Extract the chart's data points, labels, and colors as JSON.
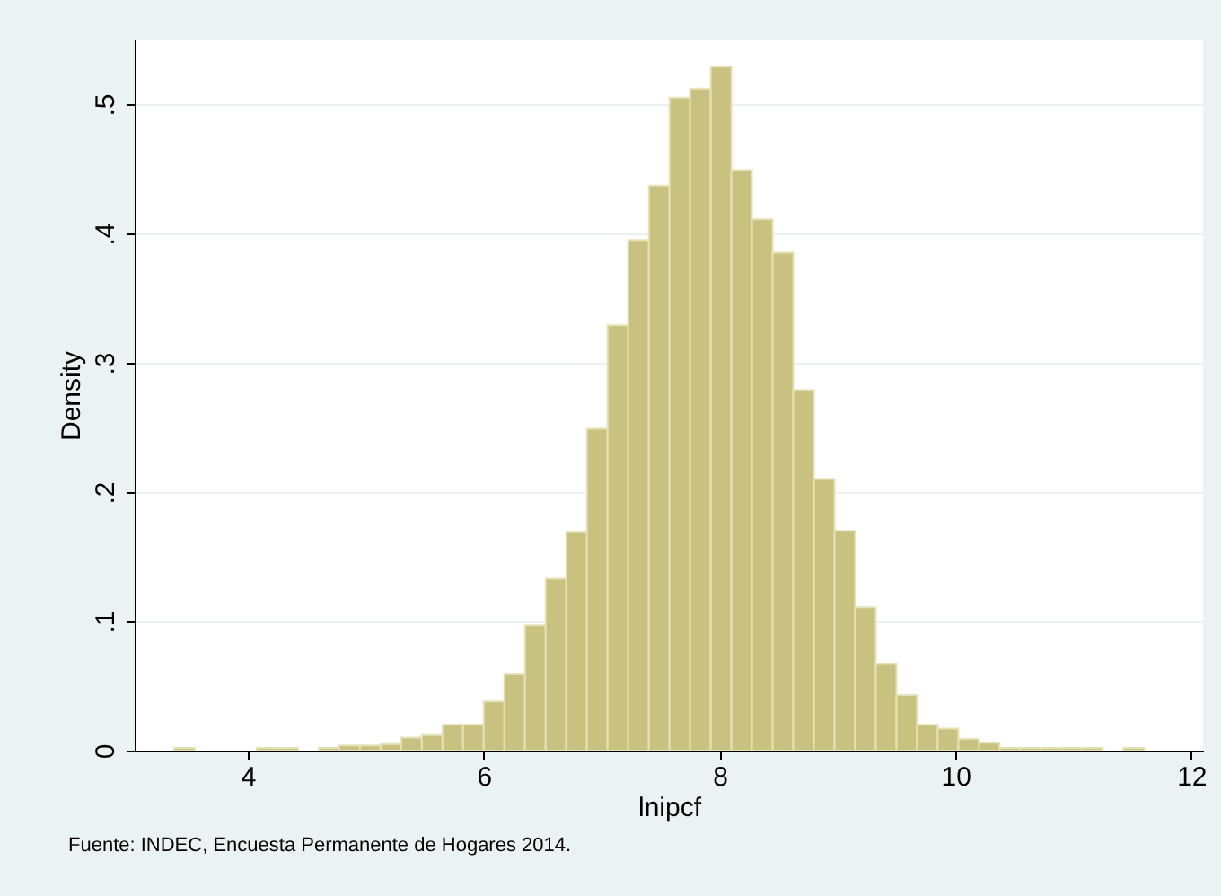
{
  "chart_data": {
    "type": "histogram",
    "xlabel": "lnipcf",
    "ylabel": "Density",
    "annotations": [
      "Fuente: INDEC, Encuesta Permanente de Hogares 2014."
    ],
    "bins": [
      3.375,
      3.55,
      3.725,
      3.9,
      4.075,
      4.25,
      4.425,
      4.6,
      4.775,
      4.95,
      5.125,
      5.3,
      5.475,
      5.65,
      5.825,
      6,
      6.175,
      6.35,
      6.525,
      6.7,
      6.875,
      7.05,
      7.225,
      7.4,
      7.575,
      7.75,
      7.925,
      8.1,
      8.275,
      8.45,
      8.625,
      8.8,
      8.975,
      9.15,
      9.325,
      9.5,
      9.675,
      9.85,
      10.025,
      10.2,
      10.375,
      10.55,
      10.725,
      10.9,
      11.075,
      11.25,
      11.425,
      11.6
    ],
    "values": [
      0.002,
      0,
      0,
      0,
      0.002,
      0.002,
      0,
      0.002,
      0.004,
      0.004,
      0.005,
      0.01,
      0.012,
      0.02,
      0.02,
      0.038,
      0.059,
      0.097,
      0.133,
      0.169,
      0.249,
      0.329,
      0.395,
      0.437,
      0.505,
      0.512,
      0.529,
      0.449,
      0.411,
      0.385,
      0.279,
      0.21,
      0.17,
      0.111,
      0.067,
      0.043,
      0.02,
      0.017,
      0.009,
      0.006,
      0.002,
      0.002,
      0.002,
      0.002,
      0.002,
      0,
      0.002
    ],
    "color": "#c9c17f",
    "xlim": [
      3.04,
      12.1
    ],
    "xticks": [
      4,
      6,
      8,
      10,
      12
    ],
    "ylim": [
      0,
      0.55
    ],
    "yticks": [
      {
        "value": 0,
        "label": "0"
      },
      {
        "value": 0.1,
        "label": ".1"
      },
      {
        "value": 0.2,
        "label": ".2"
      },
      {
        "value": 0.3,
        "label": ".3"
      },
      {
        "value": 0.4,
        "label": ".4"
      },
      {
        "value": 0.5,
        "label": ".5"
      }
    ],
    "grid": "y"
  }
}
